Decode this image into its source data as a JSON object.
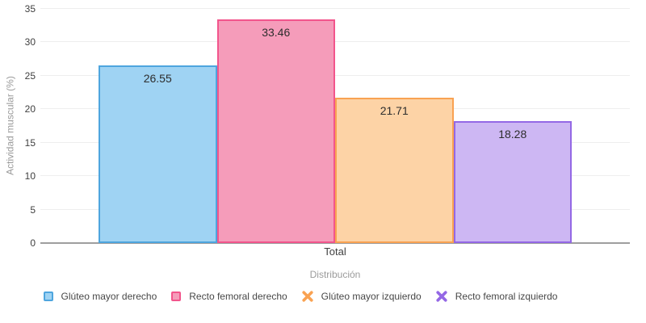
{
  "chart_data": {
    "type": "bar",
    "title": "",
    "categories": [
      "Total"
    ],
    "series": [
      {
        "name": "Glúteo mayor derecho",
        "values": [
          26.55
        ],
        "fill_color": "#9fd3f3",
        "border_color": "#4ea5de",
        "legend_marker": "square"
      },
      {
        "name": "Recto femoral derecho",
        "values": [
          33.46
        ],
        "fill_color": "#f59cba",
        "border_color": "#f2558c",
        "legend_marker": "square"
      },
      {
        "name": "Glúteo mayor izquierdo",
        "values": [
          21.71
        ],
        "fill_color": "#fdd3a6",
        "border_color": "#f9a252",
        "legend_marker": "cross"
      },
      {
        "name": "Recto femoral izquierdo",
        "values": [
          18.28
        ],
        "fill_color": "#cdb7f3",
        "border_color": "#9468e5",
        "legend_marker": "cross"
      }
    ],
    "value_labels": [
      "26.55",
      "33.46",
      "21.71",
      "18.28"
    ],
    "xlabel": "Distribución",
    "ylabel": "Actividad muscular (%)",
    "ylim": [
      0,
      35
    ],
    "yticks": [
      0,
      5,
      10,
      15,
      20,
      25,
      30,
      35
    ],
    "grid": true,
    "legend_position": "bottom",
    "colors_note": {
      "gridline": "#eeeeee",
      "axis_line": "#9e9e9e",
      "tick_text": "#3f3f3f",
      "axis_title_text": "#9b9b9b",
      "value_label_text": "#2d2d2d"
    }
  }
}
